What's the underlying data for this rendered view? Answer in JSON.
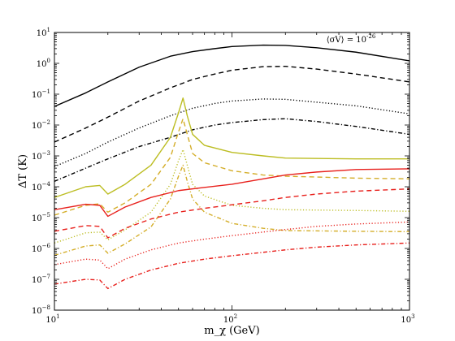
{
  "chart_data": {
    "type": "line",
    "xlabel": "m_χ (GeV)",
    "ylabel": "ΔT (K)",
    "xscale": "log",
    "yscale": "log",
    "xlim": [
      10,
      1000
    ],
    "ylim": [
      1e-08,
      10
    ],
    "grid": false,
    "annotation": "⟨σV⟩ = 10^-26",
    "x_ticks": [
      {
        "value": 10,
        "label": "10",
        "exp": "1"
      },
      {
        "value": 100,
        "label": "10",
        "exp": "2"
      },
      {
        "value": 1000,
        "label": "10",
        "exp": "3"
      }
    ],
    "y_ticks": [
      {
        "value": 10,
        "label": "10",
        "exp": "1"
      },
      {
        "value": 1,
        "label": "10",
        "exp": "0"
      },
      {
        "value": 0.1,
        "label": "10",
        "exp": "−1"
      },
      {
        "value": 0.01,
        "label": "10",
        "exp": "−2"
      },
      {
        "value": 0.001,
        "label": "10",
        "exp": "−3"
      },
      {
        "value": 0.0001,
        "label": "10",
        "exp": "−4"
      },
      {
        "value": 1e-05,
        "label": "10",
        "exp": "−5"
      },
      {
        "value": 1e-06,
        "label": "10",
        "exp": "−6"
      },
      {
        "value": 1e-07,
        "label": "10",
        "exp": "−7"
      },
      {
        "value": 1e-08,
        "label": "10",
        "exp": "−8"
      }
    ],
    "series": [
      {
        "color": "#000000",
        "dash": "solid",
        "x": [
          10,
          15,
          20,
          30,
          45,
          60,
          80,
          100,
          150,
          200,
          300,
          500,
          1000
        ],
        "y": [
          0.04,
          0.11,
          0.25,
          0.75,
          1.7,
          2.4,
          3.0,
          3.5,
          3.9,
          3.8,
          3.2,
          2.3,
          1.2
        ]
      },
      {
        "color": "#000000",
        "dash": "dashed",
        "x": [
          10,
          15,
          20,
          30,
          45,
          60,
          80,
          100,
          150,
          200,
          300,
          500,
          1000
        ],
        "y": [
          0.0028,
          0.008,
          0.018,
          0.06,
          0.16,
          0.3,
          0.45,
          0.6,
          0.78,
          0.8,
          0.65,
          0.45,
          0.25
        ]
      },
      {
        "color": "#000000",
        "dash": "dotted",
        "x": [
          10,
          15,
          20,
          30,
          45,
          60,
          80,
          100,
          150,
          200,
          300,
          500,
          1000
        ],
        "y": [
          0.00045,
          0.0012,
          0.0028,
          0.008,
          0.02,
          0.035,
          0.05,
          0.06,
          0.07,
          0.068,
          0.055,
          0.042,
          0.023
        ]
      },
      {
        "color": "#000000",
        "dash": "dashdot",
        "x": [
          10,
          15,
          20,
          30,
          45,
          60,
          80,
          100,
          150,
          200,
          300,
          500,
          1000
        ],
        "y": [
          0.00015,
          0.0004,
          0.0008,
          0.002,
          0.004,
          0.007,
          0.01,
          0.012,
          0.015,
          0.016,
          0.013,
          0.009,
          0.005
        ]
      },
      {
        "color": "#bcbd22",
        "dash": "solid",
        "x": [
          10,
          15,
          18,
          20,
          25,
          35,
          45,
          50,
          53,
          56,
          60,
          70,
          100,
          150,
          200,
          500,
          1000
        ],
        "y": [
          4.5e-05,
          0.0001,
          0.00011,
          5.8e-05,
          0.00012,
          0.0005,
          0.004,
          0.025,
          0.075,
          0.02,
          0.005,
          0.0022,
          0.0013,
          0.001,
          0.00085,
          0.0008,
          0.0008
        ]
      },
      {
        "color": "#d4ae2a",
        "dash": "dashed",
        "x": [
          10,
          15,
          18,
          20,
          25,
          35,
          45,
          50,
          53,
          56,
          60,
          70,
          100,
          150,
          200,
          500,
          1000
        ],
        "y": [
          1.2e-05,
          2.5e-05,
          2.8e-05,
          1.5e-05,
          3e-05,
          0.00012,
          0.0009,
          0.006,
          0.016,
          0.005,
          0.0012,
          0.0006,
          0.00033,
          0.00024,
          0.00022,
          0.00019,
          0.00018
        ]
      },
      {
        "color": "#bcbd22",
        "dash": "dotted",
        "x": [
          10,
          15,
          18,
          20,
          25,
          35,
          45,
          50,
          53,
          56,
          60,
          70,
          100,
          150,
          200,
          500,
          1000
        ],
        "y": [
          1.5e-06,
          3.2e-06,
          3.4e-06,
          1.9e-06,
          4e-06,
          1.5e-05,
          0.00012,
          0.0007,
          0.0016,
          0.0005,
          0.00012,
          5e-05,
          2.5e-05,
          2e-05,
          1.8e-05,
          1.7e-05,
          1.6e-05
        ]
      },
      {
        "color": "#d4ae2a",
        "dash": "dashdot",
        "x": [
          10,
          15,
          18,
          20,
          25,
          35,
          45,
          50,
          53,
          56,
          60,
          70,
          100,
          150,
          200,
          500,
          1000
        ],
        "y": [
          6e-07,
          1.2e-06,
          1.3e-06,
          7e-07,
          1.4e-06,
          5e-06,
          4e-05,
          0.00022,
          0.0005,
          0.00015,
          4e-05,
          1.5e-05,
          6.5e-06,
          4.5e-06,
          3.8e-06,
          3.6e-06,
          3.5e-06
        ]
      },
      {
        "color": "#e8201c",
        "dash": "solid",
        "x": [
          10,
          15,
          18,
          20,
          25,
          35,
          50,
          70,
          100,
          150,
          200,
          300,
          500,
          1000
        ],
        "y": [
          1.8e-05,
          2.7e-05,
          2.5e-05,
          1.1e-05,
          2.2e-05,
          4.5e-05,
          7.5e-05,
          9.5e-05,
          0.00012,
          0.00018,
          0.00024,
          0.0003,
          0.00036,
          0.00038
        ]
      },
      {
        "color": "#e8201c",
        "dash": "dashed",
        "x": [
          10,
          15,
          18,
          20,
          25,
          35,
          50,
          70,
          100,
          150,
          200,
          300,
          500,
          1000
        ],
        "y": [
          3.6e-06,
          5.5e-06,
          5.2e-06,
          2.2e-06,
          4.5e-06,
          9e-06,
          1.5e-05,
          2e-05,
          2.6e-05,
          3.5e-05,
          4.5e-05,
          5.8e-05,
          7.2e-05,
          8.5e-05
        ]
      },
      {
        "color": "#e8201c",
        "dash": "dotted",
        "x": [
          10,
          15,
          18,
          20,
          25,
          35,
          50,
          70,
          100,
          150,
          200,
          300,
          500,
          1000
        ],
        "y": [
          3e-07,
          4.5e-07,
          4.2e-07,
          2.2e-07,
          4.5e-07,
          9e-07,
          1.5e-06,
          2e-06,
          2.6e-06,
          3.4e-06,
          4.1e-06,
          5.2e-06,
          6.2e-06,
          7.2e-06
        ]
      },
      {
        "color": "#e8201c",
        "dash": "dashdot",
        "x": [
          10,
          15,
          18,
          20,
          25,
          35,
          50,
          70,
          100,
          150,
          200,
          300,
          500,
          1000
        ],
        "y": [
          7e-08,
          1e-07,
          9.5e-08,
          5e-08,
          1e-07,
          2e-07,
          3.3e-07,
          4.5e-07,
          5.8e-07,
          7.5e-07,
          9e-07,
          1.1e-06,
          1.3e-06,
          1.5e-06
        ]
      }
    ]
  }
}
